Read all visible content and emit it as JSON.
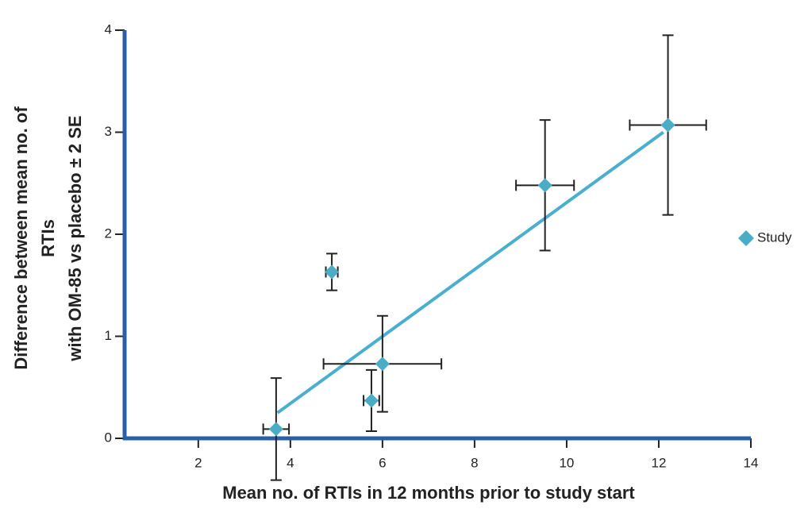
{
  "chart_data": {
    "type": "scatter",
    "x_label": "Mean no. of RTIs in 12 months prior to study start",
    "y_label": [
      "Difference between mean no. of",
      "RTIs",
      "with OM-85 vs placebo ± 2 SE"
    ],
    "xlim": [
      0.4,
      14
    ],
    "xticks": [
      2,
      4,
      6,
      8,
      10,
      12,
      14
    ],
    "ylim": [
      0,
      4
    ],
    "yticks": [
      0,
      1,
      2,
      3,
      4
    ],
    "legend": "right",
    "series": [
      {
        "name": "Study",
        "color": "#4bacc6",
        "x": [
          3.69,
          4.9,
          5.76,
          6.0,
          9.53,
          12.2
        ],
        "values": [
          0.09,
          1.63,
          0.37,
          0.73,
          2.48,
          3.07
        ],
        "x_errors": [
          0.28,
          0.13,
          0.17,
          1.28,
          0.63,
          0.83
        ],
        "y_errors": [
          0.5,
          0.18,
          0.3,
          0.47,
          0.64,
          0.88
        ]
      }
    ],
    "trendline": {
      "color": "#4aaecf",
      "x": [
        3.72,
        12.1
      ],
      "values": [
        0.25,
        3.0
      ]
    },
    "axis_color": "#2a5ea8"
  }
}
